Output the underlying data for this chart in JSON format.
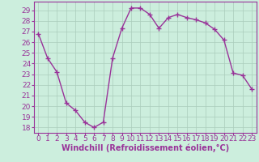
{
  "x": [
    0,
    1,
    2,
    3,
    4,
    5,
    6,
    7,
    8,
    9,
    10,
    11,
    12,
    13,
    14,
    15,
    16,
    17,
    18,
    19,
    20,
    21,
    22,
    23
  ],
  "y": [
    26.8,
    24.5,
    23.2,
    20.3,
    19.6,
    18.5,
    18.0,
    18.5,
    24.5,
    27.3,
    29.2,
    29.2,
    28.6,
    27.3,
    28.3,
    28.6,
    28.3,
    28.1,
    27.8,
    27.2,
    26.2,
    23.1,
    22.9,
    21.6
  ],
  "line_color": "#993399",
  "marker": "+",
  "markersize": 4,
  "linewidth": 1,
  "bg_color": "#cceedd",
  "grid_color": "#aaccbb",
  "ylabel_ticks": [
    18,
    19,
    20,
    21,
    22,
    23,
    24,
    25,
    26,
    27,
    28,
    29
  ],
  "ylim": [
    17.5,
    29.8
  ],
  "xlim": [
    -0.5,
    23.5
  ],
  "xlabel": "Windchill (Refroidissement éolien,°C)",
  "xlabel_color": "#993399",
  "tick_color": "#993399",
  "xlabel_fontsize": 7,
  "tick_fontsize": 6.5
}
